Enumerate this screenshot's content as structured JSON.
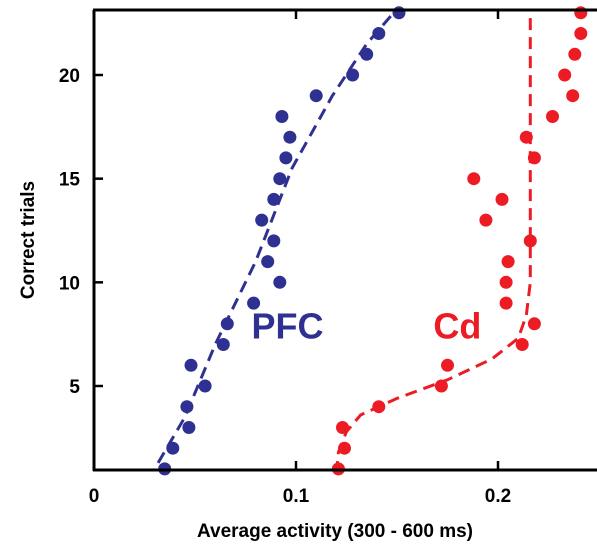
{
  "chart_data": {
    "type": "scatter",
    "title": "",
    "xlabel": "Average activity (300 - 600 ms)",
    "ylabel": "Correct trials",
    "xlim": [
      0,
      0.25
    ],
    "ylim": [
      1,
      23
    ],
    "xticks": [
      0,
      0.1,
      0.2
    ],
    "xtick_labels": [
      "0",
      "0.1",
      "0.2"
    ],
    "yticks": [
      5,
      10,
      15,
      20
    ],
    "ytick_labels": [
      "5",
      "10",
      "15",
      "20"
    ],
    "grid": false,
    "legend": "none",
    "series": [
      {
        "name": "PFC",
        "color": "#2e3192",
        "points": [
          {
            "x": 0.035,
            "y": 1
          },
          {
            "x": 0.039,
            "y": 2
          },
          {
            "x": 0.047,
            "y": 3
          },
          {
            "x": 0.046,
            "y": 4
          },
          {
            "x": 0.055,
            "y": 5
          },
          {
            "x": 0.048,
            "y": 6
          },
          {
            "x": 0.064,
            "y": 7
          },
          {
            "x": 0.066,
            "y": 8
          },
          {
            "x": 0.079,
            "y": 9
          },
          {
            "x": 0.092,
            "y": 10
          },
          {
            "x": 0.086,
            "y": 11
          },
          {
            "x": 0.089,
            "y": 12
          },
          {
            "x": 0.083,
            "y": 13
          },
          {
            "x": 0.089,
            "y": 14
          },
          {
            "x": 0.092,
            "y": 15
          },
          {
            "x": 0.095,
            "y": 16
          },
          {
            "x": 0.097,
            "y": 17
          },
          {
            "x": 0.093,
            "y": 18
          },
          {
            "x": 0.11,
            "y": 19
          },
          {
            "x": 0.128,
            "y": 20
          },
          {
            "x": 0.135,
            "y": 21
          },
          {
            "x": 0.141,
            "y": 22
          },
          {
            "x": 0.151,
            "y": 23
          }
        ],
        "fit": [
          {
            "x": 0.027,
            "y": 0.5
          },
          {
            "x": 0.045,
            "y": 3.5
          },
          {
            "x": 0.06,
            "y": 7
          },
          {
            "x": 0.08,
            "y": 11
          },
          {
            "x": 0.098,
            "y": 15.5
          },
          {
            "x": 0.118,
            "y": 19
          },
          {
            "x": 0.135,
            "y": 21.5
          },
          {
            "x": 0.151,
            "y": 23.3
          }
        ]
      },
      {
        "name": "Cd",
        "color": "#ed1c24",
        "points": [
          {
            "x": 0.121,
            "y": 1
          },
          {
            "x": 0.124,
            "y": 2
          },
          {
            "x": 0.123,
            "y": 3
          },
          {
            "x": 0.141,
            "y": 4
          },
          {
            "x": 0.172,
            "y": 5
          },
          {
            "x": 0.175,
            "y": 6
          },
          {
            "x": 0.212,
            "y": 7
          },
          {
            "x": 0.218,
            "y": 8
          },
          {
            "x": 0.204,
            "y": 9
          },
          {
            "x": 0.204,
            "y": 10
          },
          {
            "x": 0.205,
            "y": 11
          },
          {
            "x": 0.216,
            "y": 12
          },
          {
            "x": 0.194,
            "y": 13
          },
          {
            "x": 0.202,
            "y": 14
          },
          {
            "x": 0.188,
            "y": 15
          },
          {
            "x": 0.218,
            "y": 16
          },
          {
            "x": 0.214,
            "y": 17
          },
          {
            "x": 0.227,
            "y": 18
          },
          {
            "x": 0.237,
            "y": 19
          },
          {
            "x": 0.233,
            "y": 20
          },
          {
            "x": 0.238,
            "y": 21
          },
          {
            "x": 0.241,
            "y": 22
          },
          {
            "x": 0.241,
            "y": 23
          }
        ],
        "fit": [
          {
            "x": 0.12,
            "y": 0.8
          },
          {
            "x": 0.121,
            "y": 1.8
          },
          {
            "x": 0.125,
            "y": 2.8
          },
          {
            "x": 0.132,
            "y": 3.6
          },
          {
            "x": 0.15,
            "y": 4.4
          },
          {
            "x": 0.175,
            "y": 5.3
          },
          {
            "x": 0.197,
            "y": 6.3
          },
          {
            "x": 0.21,
            "y": 7.3
          },
          {
            "x": 0.214,
            "y": 8.4
          },
          {
            "x": 0.216,
            "y": 10
          },
          {
            "x": 0.216,
            "y": 14
          },
          {
            "x": 0.216,
            "y": 18
          },
          {
            "x": 0.216,
            "y": 23.3
          }
        ]
      }
    ],
    "annotations": [
      {
        "text": "PFC",
        "color": "#2e3192",
        "x": 0.078,
        "y": 7.3
      },
      {
        "text": "Cd",
        "color": "#ed1c24",
        "x": 0.168,
        "y": 7.3
      }
    ]
  }
}
